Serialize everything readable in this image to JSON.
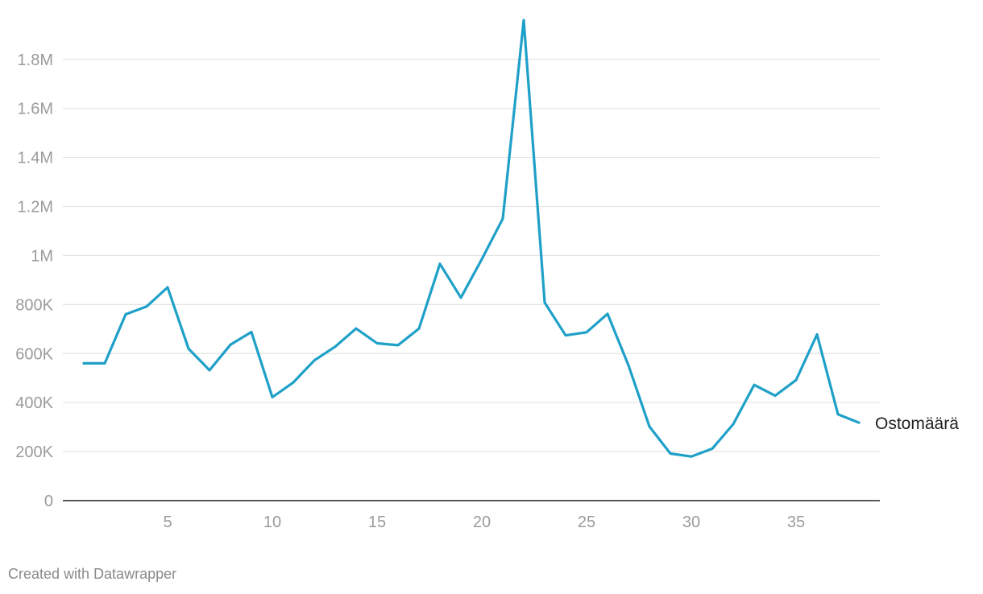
{
  "chart_data": {
    "type": "line",
    "title": "",
    "xlabel": "",
    "ylabel": "",
    "x": [
      1,
      2,
      3,
      4,
      5,
      6,
      7,
      8,
      9,
      10,
      11,
      12,
      13,
      14,
      15,
      16,
      17,
      18,
      19,
      20,
      21,
      22,
      23,
      24,
      25,
      26,
      27,
      28,
      29,
      30,
      31,
      32,
      33,
      34,
      35,
      36,
      37,
      38
    ],
    "xlim": [
      0,
      39
    ],
    "ylim": [
      0,
      1970000
    ],
    "grid": true,
    "series": [
      {
        "name": "Ostomäärä",
        "color": "#1fa0c8",
        "values": [
          560000,
          560000,
          760000,
          792000,
          870000,
          620000,
          532000,
          636000,
          688000,
          422000,
          482000,
          572000,
          628000,
          702000,
          642000,
          634000,
          702000,
          966000,
          828000,
          985000,
          1150000,
          1960000,
          808000,
          674000,
          687000,
          762000,
          552000,
          302000,
          192000,
          180000,
          212000,
          312000,
          472000,
          428000,
          492000,
          678000,
          352000,
          318000
        ]
      }
    ],
    "y_ticks": [
      {
        "value": 0,
        "label": "0"
      },
      {
        "value": 200000,
        "label": "200K"
      },
      {
        "value": 400000,
        "label": "400K"
      },
      {
        "value": 600000,
        "label": "600K"
      },
      {
        "value": 800000,
        "label": "800K"
      },
      {
        "value": 1000000,
        "label": "1M"
      },
      {
        "value": 1200000,
        "label": "1.2M"
      },
      {
        "value": 1400000,
        "label": "1.4M"
      },
      {
        "value": 1600000,
        "label": "1.6M"
      },
      {
        "value": 1800000,
        "label": "1.8M"
      }
    ],
    "x_ticks": [
      {
        "value": 5,
        "label": "5"
      },
      {
        "value": 10,
        "label": "10"
      },
      {
        "value": 15,
        "label": "15"
      },
      {
        "value": 20,
        "label": "20"
      },
      {
        "value": 25,
        "label": "25"
      },
      {
        "value": 30,
        "label": "30"
      },
      {
        "value": 35,
        "label": "35"
      }
    ]
  },
  "footer": {
    "credit": "Created with Datawrapper"
  }
}
